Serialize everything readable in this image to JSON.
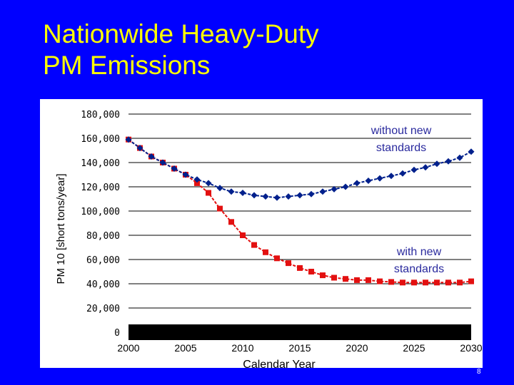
{
  "slide": {
    "title_line1": "Nationwide Heavy-Duty",
    "title_line2": "PM Emissions",
    "page_number": "8"
  },
  "chart_data": {
    "type": "line",
    "title": "",
    "xlabel": "Calendar Year",
    "ylabel": "PM 10 [short tons/year]",
    "xlim": [
      2000,
      2030
    ],
    "ylim": [
      0,
      180000
    ],
    "y_ticks": [
      0,
      20000,
      40000,
      60000,
      80000,
      100000,
      120000,
      140000,
      160000,
      180000
    ],
    "y_tick_labels": [
      "0",
      "20,000",
      "40,000",
      "60,000",
      "80,000",
      "100,000",
      "120,000",
      "140,000",
      "160,000",
      "180,000"
    ],
    "x_ticks": [
      2000,
      2005,
      2010,
      2015,
      2020,
      2025,
      2030
    ],
    "x_tick_labels": [
      "2000",
      "2005",
      "2010",
      "2015",
      "2020",
      "2025",
      "2030"
    ],
    "x": [
      2000,
      2001,
      2002,
      2003,
      2004,
      2005,
      2006,
      2007,
      2008,
      2009,
      2010,
      2011,
      2012,
      2013,
      2014,
      2015,
      2016,
      2017,
      2018,
      2019,
      2020,
      2021,
      2022,
      2023,
      2024,
      2025,
      2026,
      2027,
      2028,
      2029,
      2030
    ],
    "series": [
      {
        "name": "without new standards",
        "label_line1": "without new",
        "label_line2": "standards",
        "color": "#00208C",
        "marker": "diamond",
        "values": [
          159000,
          152000,
          145000,
          140000,
          135000,
          130000,
          126000,
          123000,
          119000,
          116000,
          115000,
          113000,
          112000,
          111000,
          112000,
          113000,
          114000,
          116000,
          118000,
          120000,
          123000,
          125000,
          127000,
          129000,
          131000,
          134000,
          136000,
          139000,
          141000,
          144000,
          149000
        ]
      },
      {
        "name": "with new standards",
        "label_line1": "with new",
        "label_line2": "standards",
        "color": "#E31010",
        "marker": "square",
        "values": [
          159000,
          152000,
          145000,
          140000,
          135000,
          130000,
          123000,
          115000,
          102000,
          91000,
          80000,
          72000,
          66000,
          61000,
          57000,
          53000,
          50000,
          47000,
          45000,
          44000,
          43000,
          43000,
          42000,
          41500,
          41000,
          41000,
          41000,
          41000,
          41000,
          41000,
          42000
        ]
      }
    ]
  }
}
